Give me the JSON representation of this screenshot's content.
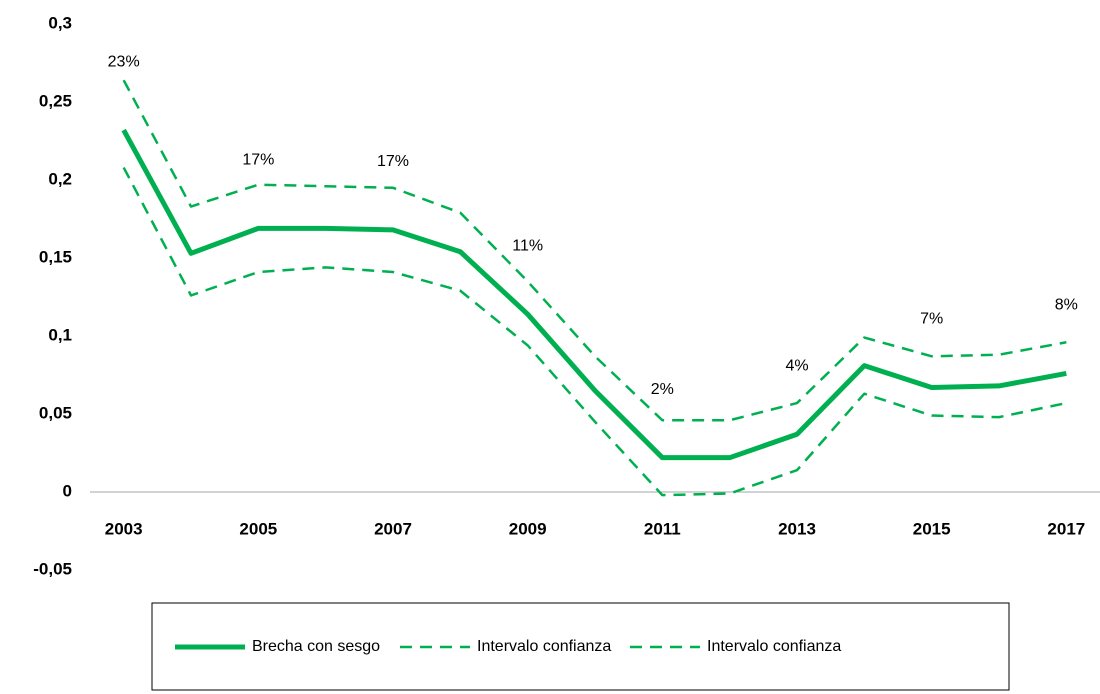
{
  "chart_data": {
    "type": "line",
    "categories": [
      "2003",
      null,
      "2005",
      null,
      "2007",
      null,
      "2009",
      null,
      "2011",
      null,
      "2013",
      null,
      "2015",
      null,
      "2017"
    ],
    "series": [
      {
        "name": "Brecha con sesgo",
        "color": "#00b050",
        "style": "solid",
        "values": [
          0.232,
          0.153,
          0.169,
          0.169,
          0.168,
          0.154,
          0.114,
          0.065,
          0.022,
          0.022,
          0.037,
          0.081,
          0.067,
          0.068,
          0.076
        ],
        "value_labels": [
          "23%",
          null,
          "17%",
          null,
          "17%",
          null,
          "11%",
          null,
          "2%",
          null,
          "4%",
          null,
          "7%",
          null,
          "8%"
        ]
      },
      {
        "name": "Intervalo confianza",
        "color": "#00b050",
        "style": "dashed",
        "values": [
          0.264,
          0.183,
          0.197,
          0.196,
          0.195,
          0.179,
          0.135,
          0.087,
          0.046,
          0.046,
          0.057,
          0.099,
          0.087,
          0.088,
          0.096
        ]
      },
      {
        "name": "Intervalo confianza",
        "color": "#00b050",
        "style": "dashed",
        "values": [
          0.208,
          0.126,
          0.141,
          0.144,
          0.141,
          0.129,
          0.094,
          0.045,
          -0.002,
          -0.001,
          0.014,
          0.063,
          0.049,
          0.048,
          0.057
        ]
      }
    ],
    "ylim": [
      -0.05,
      0.3
    ],
    "yticks": [
      {
        "value": -0.05,
        "label": "-0,05"
      },
      0,
      {
        "value": 0.05,
        "label": "0,05"
      },
      {
        "value": 0.1,
        "label": "0,1"
      },
      {
        "value": 0.15,
        "label": "0,15"
      },
      {
        "value": 0.2,
        "label": "0,2"
      },
      {
        "value": 0.25,
        "label": "0,25"
      },
      {
        "value": 0.3,
        "label": "0,3"
      }
    ],
    "grid": false
  }
}
